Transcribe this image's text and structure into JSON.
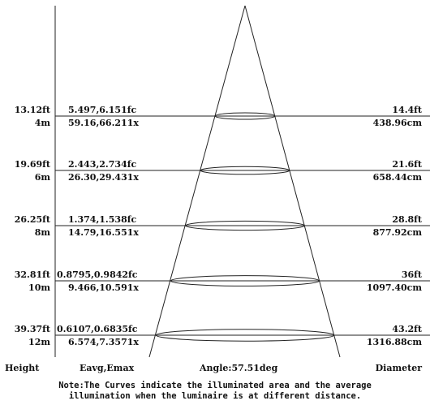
{
  "rows": [
    {
      "height_ft": "13.12ft",
      "height_m": "4m",
      "illum_fc": "5.497,6.151fc",
      "illum_lx": "59.16,66.211x",
      "diam_ft": "14.4ft",
      "diam_cm": "438.96cm"
    },
    {
      "height_ft": "19.69ft",
      "height_m": "6m",
      "illum_fc": "2.443,2.734fc",
      "illum_lx": "26.30,29.431x",
      "diam_ft": "21.6ft",
      "diam_cm": "658.44cm"
    },
    {
      "height_ft": "26.25ft",
      "height_m": "8m",
      "illum_fc": "1.374,1.538fc",
      "illum_lx": "14.79,16.551x",
      "diam_ft": "28.8ft",
      "diam_cm": "877.92cm"
    },
    {
      "height_ft": "32.81ft",
      "height_m": "10m",
      "illum_fc": "0.8795,0.9842fc",
      "illum_lx": "9.466,10.591x",
      "diam_ft": "36ft",
      "diam_cm": "1097.40cm"
    },
    {
      "height_ft": "39.37ft",
      "height_m": "12m",
      "illum_fc": "0.6107,0.6835fc",
      "illum_lx": "6.574,7.3571x",
      "diam_ft": "43.2ft",
      "diam_cm": "1316.88cm"
    }
  ],
  "footer": {
    "height_label": "Height",
    "illum_label": "Eavg,Emax",
    "angle_label": "Angle:57.51deg",
    "diameter_label": "Diameter"
  },
  "note": {
    "line1": "Note:The Curves indicate the illuminated area and the average",
    "line2": "illumination when the luminaire is at different distance."
  }
}
